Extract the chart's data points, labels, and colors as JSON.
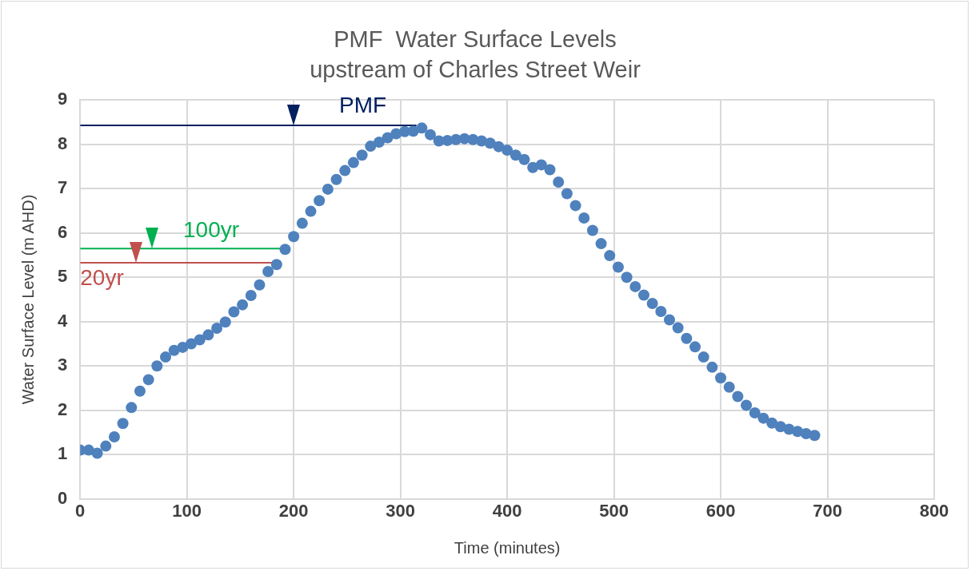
{
  "chart_data": {
    "type": "scatter",
    "title": "PMF  Water Surface Levels\nupstream of Charles Street Weir",
    "xlabel": "Time (minutes)",
    "ylabel": "Water Surface Level (m AHD)",
    "xlim": [
      0,
      800
    ],
    "xticks": [
      0,
      100,
      200,
      300,
      400,
      500,
      600,
      700,
      800
    ],
    "ylim": [
      0,
      9
    ],
    "yticks": [
      0,
      1,
      2,
      3,
      4,
      5,
      6,
      7,
      8,
      9
    ],
    "grid": true,
    "legend": "top left",
    "marker": "circle",
    "series": [
      {
        "type": "scatter",
        "color": "#4f81bd",
        "x": [
          0,
          8,
          16,
          24,
          32,
          40,
          48,
          56,
          64,
          72,
          80,
          88,
          96,
          104,
          112,
          120,
          128,
          136,
          144,
          152,
          160,
          168,
          176,
          184,
          192,
          200,
          208,
          216,
          224,
          232,
          240,
          248,
          256,
          264,
          272,
          280,
          288,
          296,
          304,
          312,
          320,
          328,
          336,
          344,
          352,
          360,
          368,
          376,
          384,
          392,
          400,
          408,
          416,
          424,
          432,
          440,
          448,
          456,
          464,
          472,
          480,
          488,
          496,
          504,
          512,
          520,
          528,
          536,
          544,
          552,
          560,
          568,
          576,
          584,
          592,
          600,
          608,
          616,
          624,
          632,
          640,
          648,
          656,
          664,
          672,
          680,
          688
        ],
        "values": [
          1.1,
          1.1,
          1.03,
          1.19,
          1.4,
          1.7,
          2.06,
          2.43,
          2.69,
          3.0,
          3.2,
          3.35,
          3.42,
          3.5,
          3.59,
          3.7,
          3.85,
          3.99,
          4.22,
          4.38,
          4.59,
          4.83,
          5.13,
          5.29,
          5.63,
          5.92,
          6.22,
          6.49,
          6.73,
          6.99,
          7.21,
          7.41,
          7.59,
          7.76,
          7.96,
          8.05,
          8.15,
          8.24,
          8.29,
          8.3,
          8.37,
          8.22,
          8.08,
          8.09,
          8.11,
          8.13,
          8.11,
          8.08,
          8.03,
          7.95,
          7.87,
          7.76,
          7.66,
          7.48,
          7.54,
          7.43,
          7.15,
          6.89,
          6.62,
          6.34,
          6.06,
          5.76,
          5.49,
          5.23,
          5.0,
          4.79,
          4.6,
          4.41,
          4.23,
          4.04,
          3.86,
          3.62,
          3.43,
          3.2,
          2.97,
          2.73,
          2.52,
          2.31,
          2.11,
          1.94,
          1.82,
          1.71,
          1.63,
          1.57,
          1.52,
          1.47,
          1.43
        ]
      },
      {
        "type": "line",
        "name": "PMF",
        "color": "#002060",
        "marker": "none",
        "x": [
          0,
          315
        ],
        "values": [
          8.43,
          8.43
        ]
      },
      {
        "type": "line",
        "name": "100yr",
        "color": "#00b050",
        "marker": "none",
        "x": [
          0,
          193
        ],
        "values": [
          5.65,
          5.65
        ]
      },
      {
        "type": "line",
        "name": "20yr",
        "color": "#c0504d",
        "marker": "none",
        "x": [
          0,
          183
        ],
        "values": [
          5.33,
          5.33
        ]
      }
    ]
  }
}
